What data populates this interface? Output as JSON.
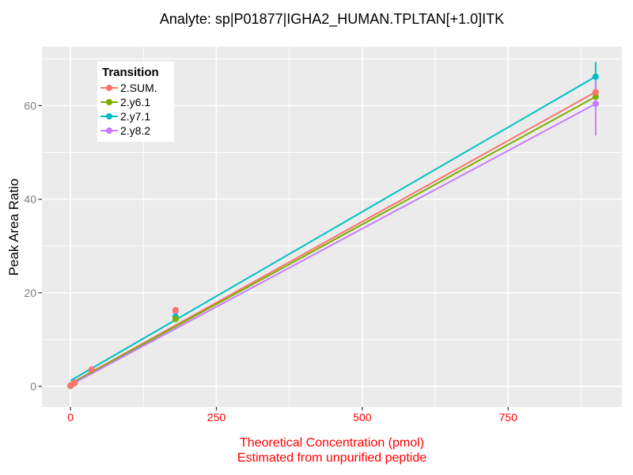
{
  "title": "Analyte: sp|P01877|IGHA2_HUMAN.TPLTAN[+1.0]ITK",
  "y_axis_label": "Peak Area Ratio",
  "x_axis_label_line1": "Theoretical Concentration (pmol)",
  "x_axis_label_line2": "Estimated from unpurified peptide",
  "colors": {
    "panel_background": "#EBEBEB",
    "grid": "#FFFFFF",
    "x_tick_label": "#FF0000",
    "x_axis_title": "#FF0000",
    "y_tick_label": "#7E7E7E",
    "tick_mark": "#333333",
    "title_text": "#000000"
  },
  "chart_data": {
    "type": "line",
    "title": "Analyte: sp|P01877|IGHA2_HUMAN.TPLTAN[+1.0]ITK",
    "xlabel": "Theoretical Concentration (pmol) / Estimated from unpurified peptide",
    "ylabel": "Peak Area Ratio",
    "xlim": [
      -49,
      945
    ],
    "ylim": [
      -4.4,
      72.6
    ],
    "x_ticks": [
      0,
      250,
      500,
      750
    ],
    "x_minor_ticks": [
      125,
      375,
      625,
      875
    ],
    "y_ticks": [
      0,
      20,
      40,
      60
    ],
    "y_minor_ticks": [
      10,
      30,
      50,
      70
    ],
    "grid": true,
    "legend_title": "Transition",
    "legend_position": "top-left-inside",
    "series": [
      {
        "name": "2.SUM.",
        "color": "#F8766D",
        "fit_line": [
          [
            0,
            0.6
          ],
          [
            900,
            62.9
          ]
        ],
        "points": [
          [
            0,
            0.1
          ],
          [
            1.5,
            0.3
          ],
          [
            7,
            0.8
          ],
          [
            36,
            3.6
          ],
          [
            180,
            16.3
          ],
          [
            900,
            62.9
          ]
        ],
        "error_bars": []
      },
      {
        "name": "2.y6.1",
        "color": "#7CAE00",
        "fit_line": [
          [
            0,
            0.5
          ],
          [
            900,
            61.9
          ]
        ],
        "points": [
          [
            0,
            0.1
          ],
          [
            7,
            0.7
          ],
          [
            36,
            3.4
          ],
          [
            180,
            14.4
          ],
          [
            900,
            61.9
          ]
        ],
        "error_bars": []
      },
      {
        "name": "2.y7.1",
        "color": "#00BFC4",
        "fit_line": [
          [
            0,
            1.2
          ],
          [
            900,
            66.2
          ]
        ],
        "points": [
          [
            0,
            0.1
          ],
          [
            7,
            0.8
          ],
          [
            36,
            3.5
          ],
          [
            180,
            14.9
          ],
          [
            900,
            66.2
          ]
        ],
        "error_bars": [
          [
            900,
            63.0,
            69.3
          ]
        ]
      },
      {
        "name": "2.y8.2",
        "color": "#C77CFF",
        "fit_line": [
          [
            0,
            0.3
          ],
          [
            900,
            60.4
          ]
        ],
        "points": [
          [
            0,
            0.1
          ],
          [
            7,
            0.7
          ],
          [
            36,
            3.3
          ],
          [
            180,
            16.0
          ],
          [
            900,
            60.4
          ]
        ],
        "error_bars": [
          [
            180,
            14.0,
            16.4
          ],
          [
            900,
            53.6,
            65.3
          ]
        ]
      }
    ]
  }
}
